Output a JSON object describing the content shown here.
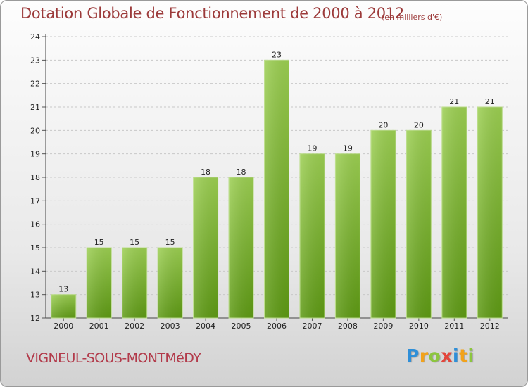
{
  "chart_data": {
    "type": "bar",
    "title": "Dotation Globale de Fonctionnement de 2000 à 2012",
    "subtitle": "(en milliers d'€)",
    "categories": [
      "2000",
      "2001",
      "2002",
      "2003",
      "2004",
      "2005",
      "2006",
      "2007",
      "2008",
      "2009",
      "2010",
      "2011",
      "2012"
    ],
    "values": [
      13,
      15,
      15,
      15,
      18,
      18,
      23,
      19,
      19,
      20,
      20,
      21,
      21
    ],
    "ylim": [
      12,
      24
    ],
    "yticks": [
      12,
      13,
      14,
      15,
      16,
      17,
      18,
      19,
      20,
      21,
      22,
      23,
      24
    ],
    "xlabel": "",
    "ylabel": "",
    "grid": true,
    "bar_color": "#7db52c"
  },
  "commune": "VIGNEUL-SOUS-MONTMéDY",
  "logo": {
    "text": "Proxiti",
    "letters": [
      "P",
      "r",
      "o",
      "x",
      "i",
      "t",
      "i"
    ]
  }
}
